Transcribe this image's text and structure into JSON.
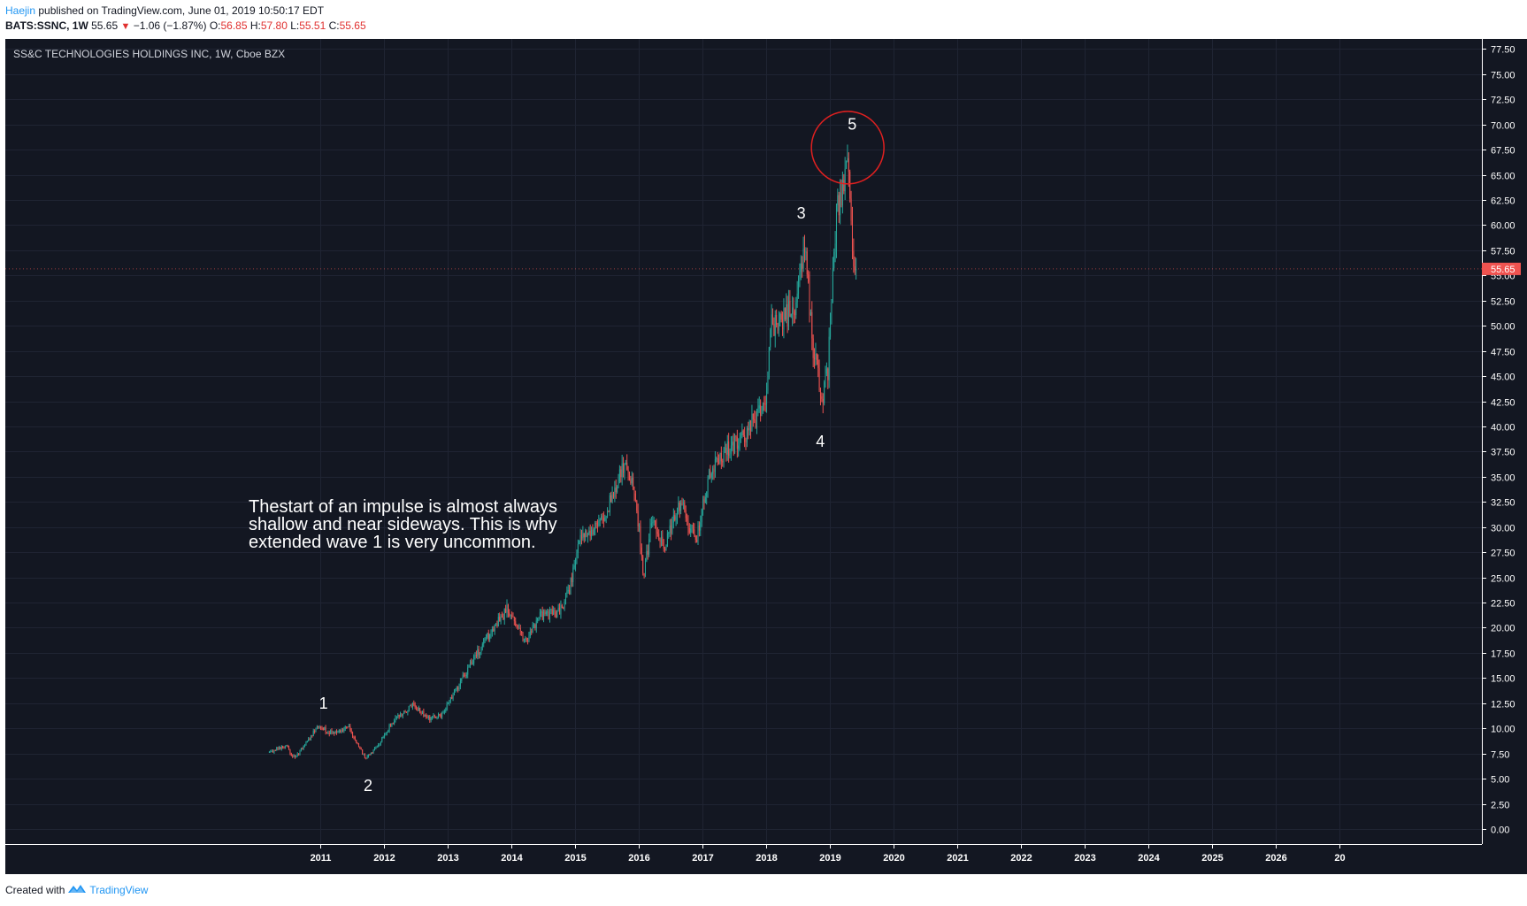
{
  "header": {
    "author": "Haejin",
    "published_text": "published on TradingView.com, June 01, 2019 10:50:17 EDT",
    "symbol_interval": "BATS:SSNC, 1W",
    "last_price": "55.65",
    "down_arrow_icon": "triangle-down-icon",
    "change": "−1.06 (−1.87%)",
    "open_label": "O:",
    "open_value": "56.85",
    "high_label": "H:",
    "high_value": "57.80",
    "low_label": "L:",
    "low_value": "55.51",
    "close_label": "C:",
    "close_value": "55.65"
  },
  "footer": {
    "created_with": "Created with",
    "brand": "TradingView",
    "logo_icon": "tradingview-logo-icon"
  },
  "chart_data": {
    "type": "candlestick",
    "title": "SS&C TECHNOLOGIES HOLDINGS INC, 1W, Cboe BZX",
    "background": "#131722",
    "up_color": "#26a69a",
    "down_color": "#ef5350",
    "ylim": [
      -1.5,
      78.5
    ],
    "y_ticks": [
      "77.50",
      "75.00",
      "72.50",
      "70.00",
      "67.50",
      "65.00",
      "62.50",
      "60.00",
      "57.50",
      "55.00",
      "52.50",
      "50.00",
      "47.50",
      "45.00",
      "42.50",
      "40.00",
      "37.50",
      "35.00",
      "32.50",
      "30.00",
      "27.50",
      "25.00",
      "22.50",
      "20.00",
      "17.50",
      "15.00",
      "12.50",
      "10.00",
      "7.50",
      "5.00",
      "2.50",
      "0.00"
    ],
    "x_ticks": [
      "2011",
      "2012",
      "2013",
      "2014",
      "2015",
      "2016",
      "2017",
      "2018",
      "2019",
      "2020",
      "2021",
      "2022",
      "2023",
      "2024",
      "2025",
      "2026",
      "20"
    ],
    "last_price_label": "55.65",
    "last_price": 55.65,
    "price_path": [
      [
        2010.2,
        7.6
      ],
      [
        2010.45,
        8.3
      ],
      [
        2010.6,
        7.0
      ],
      [
        2010.8,
        8.7
      ],
      [
        2010.95,
        10.2
      ],
      [
        2011.2,
        9.5
      ],
      [
        2011.45,
        10.1
      ],
      [
        2011.55,
        8.6
      ],
      [
        2011.72,
        7.0
      ],
      [
        2011.9,
        8.2
      ],
      [
        2012.15,
        10.8
      ],
      [
        2012.45,
        12.3
      ],
      [
        2012.7,
        11.0
      ],
      [
        2012.9,
        11.2
      ],
      [
        2013.15,
        14.0
      ],
      [
        2013.4,
        16.8
      ],
      [
        2013.65,
        19.3
      ],
      [
        2013.95,
        22.0
      ],
      [
        2014.2,
        18.5
      ],
      [
        2014.45,
        21.2
      ],
      [
        2014.75,
        21.5
      ],
      [
        2014.9,
        23.5
      ],
      [
        2015.1,
        29.5
      ],
      [
        2015.35,
        29.8
      ],
      [
        2015.55,
        32.5
      ],
      [
        2015.8,
        36.5
      ],
      [
        2015.95,
        33.0
      ],
      [
        2016.08,
        25.0
      ],
      [
        2016.2,
        30.5
      ],
      [
        2016.4,
        28.0
      ],
      [
        2016.65,
        32.5
      ],
      [
        2016.9,
        28.5
      ],
      [
        2017.1,
        35.0
      ],
      [
        2017.35,
        37.5
      ],
      [
        2017.6,
        38.5
      ],
      [
        2017.85,
        41.0
      ],
      [
        2018.0,
        43.0
      ],
      [
        2018.08,
        50.0
      ],
      [
        2018.25,
        50.5
      ],
      [
        2018.45,
        52.0
      ],
      [
        2018.6,
        58.0
      ],
      [
        2018.75,
        47.0
      ],
      [
        2018.88,
        43.0
      ],
      [
        2018.97,
        45.5
      ],
      [
        2019.1,
        61.5
      ],
      [
        2019.2,
        63.5
      ],
      [
        2019.28,
        67.0
      ],
      [
        2019.35,
        58.0
      ],
      [
        2019.42,
        55.65
      ]
    ],
    "wave_labels": [
      {
        "label": "1",
        "x": 2011.05,
        "y": 12.5
      },
      {
        "label": "2",
        "x": 2011.75,
        "y": 4.3
      },
      {
        "label": "3",
        "x": 2018.55,
        "y": 61.2
      },
      {
        "label": "4",
        "x": 2018.85,
        "y": 38.5
      },
      {
        "label": "5",
        "x": 2019.35,
        "y": 70.0
      }
    ],
    "circle_annotation": {
      "x": 2019.28,
      "y": 67.7,
      "color": "#e02020"
    },
    "annotation": [
      "Thestart of an impulse is almost always",
      "shallow and near sideways. This is why",
      "extended wave 1 is very uncommon."
    ]
  }
}
